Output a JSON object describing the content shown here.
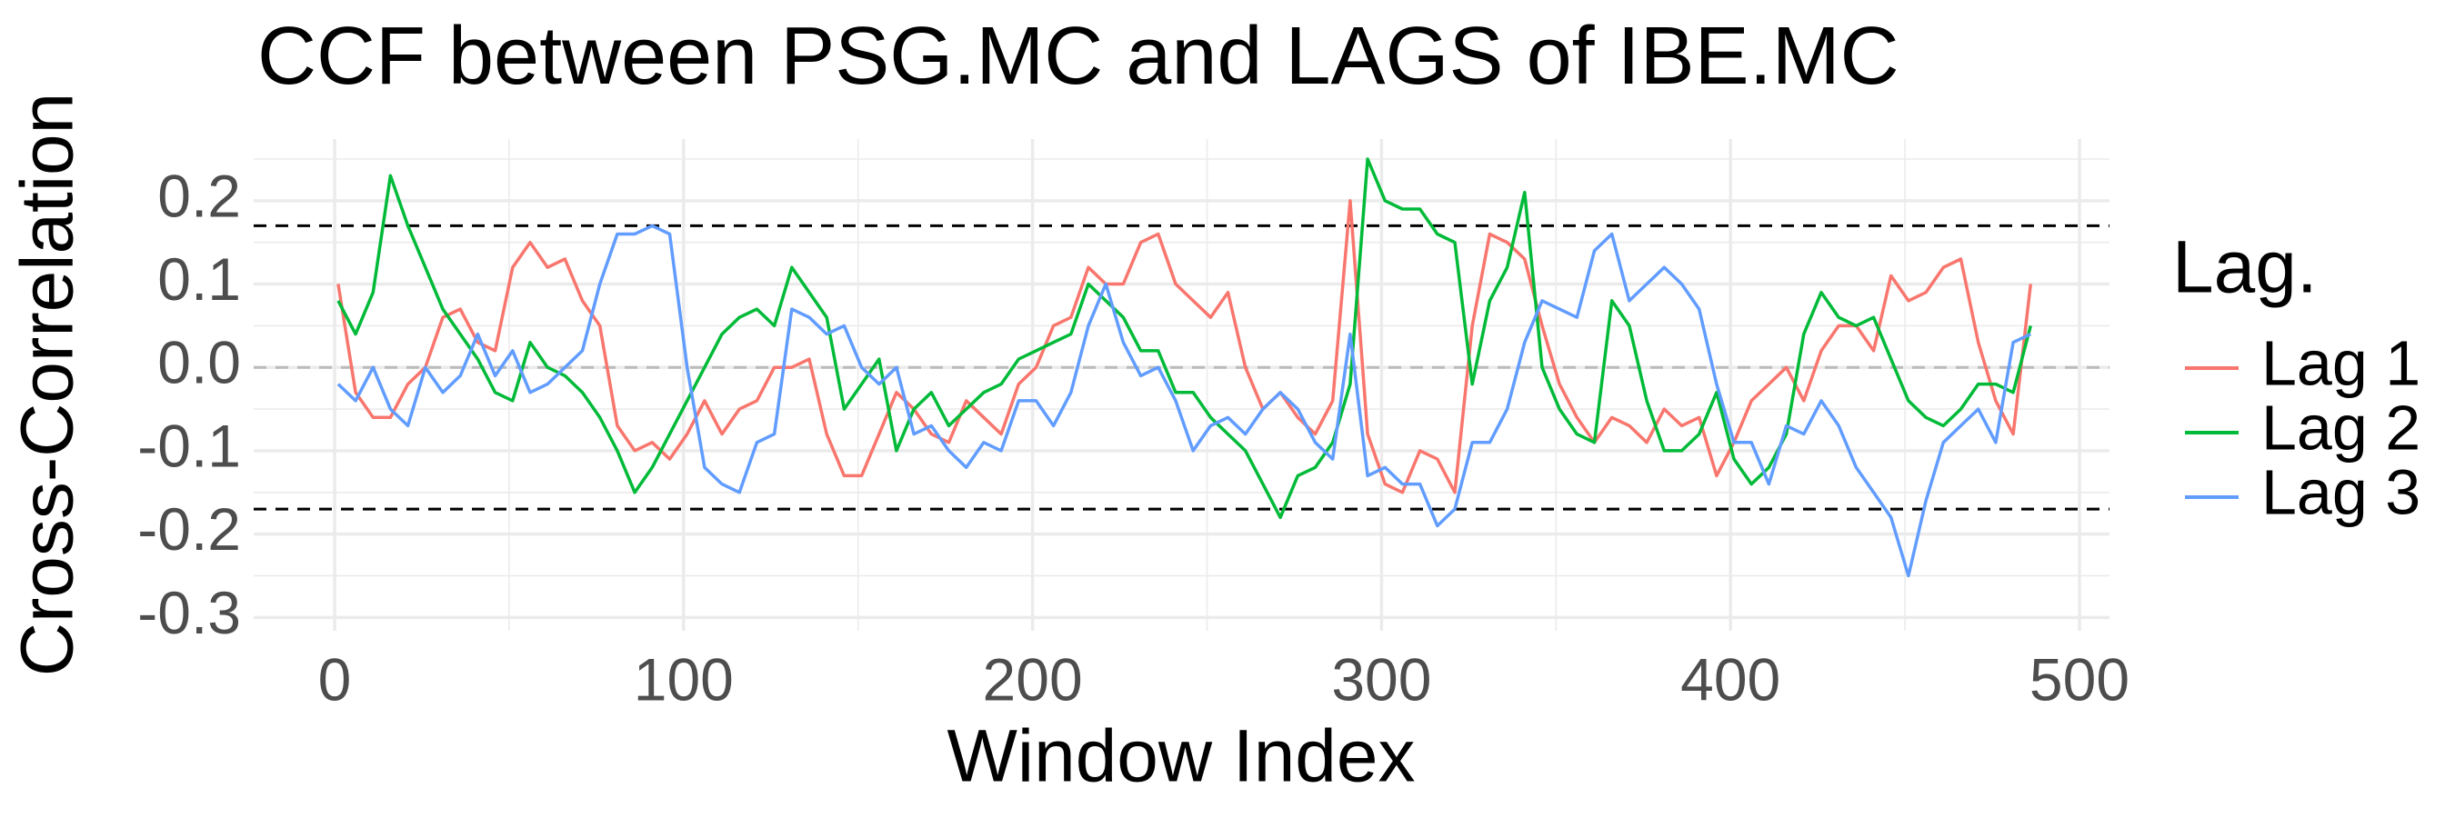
{
  "chart_data": {
    "type": "line",
    "title": "CCF between  PSG.MC and LAGS of IBE.MC",
    "x_label": "Window Index",
    "y_label": "Cross-Correlation",
    "legend_title": "Lag.",
    "legend_position": "right",
    "grid": true,
    "xlim": [
      -23.2,
      508.6
    ],
    "ylim": [
      -0.316,
      0.274
    ],
    "xticks": [
      0,
      100,
      200,
      300,
      400,
      500
    ],
    "yticks": [
      -0.3,
      -0.2,
      -0.1,
      {
        "value": 0,
        "label": "0.0"
      },
      0.1,
      0.2
    ],
    "x_minor_ticks": [
      50,
      150,
      250,
      350,
      450
    ],
    "y_minor_ticks": [
      -0.25,
      -0.15,
      -0.05,
      0.05,
      0.15,
      0.25
    ],
    "reference_lines": [
      {
        "value": 0.17,
        "color": "#000000"
      },
      {
        "value": -0.17,
        "color": "#000000"
      },
      {
        "value": 0,
        "color": "#bbbbbb"
      }
    ],
    "x": [
      1,
      6,
      11,
      16,
      21,
      26,
      31,
      36,
      41,
      46,
      51,
      56,
      61,
      66,
      71,
      76,
      81,
      86,
      91,
      96,
      101,
      106,
      111,
      116,
      121,
      126,
      131,
      136,
      141,
      146,
      151,
      156,
      161,
      166,
      171,
      176,
      181,
      186,
      191,
      196,
      201,
      206,
      211,
      216,
      221,
      226,
      231,
      236,
      241,
      246,
      251,
      256,
      261,
      266,
      271,
      276,
      281,
      286,
      291,
      296,
      301,
      306,
      311,
      316,
      321,
      326,
      331,
      336,
      341,
      346,
      351,
      356,
      361,
      366,
      371,
      376,
      381,
      386,
      391,
      396,
      401,
      406,
      411,
      416,
      421,
      426,
      431,
      436,
      441,
      446,
      451,
      456,
      461,
      466,
      471,
      476,
      481,
      486
    ],
    "series": [
      {
        "name": "Lag 1",
        "color": "#F8766D",
        "values": [
          0.1,
          -0.03,
          -0.06,
          -0.06,
          -0.02,
          0.0,
          0.06,
          0.07,
          0.03,
          0.02,
          0.12,
          0.15,
          0.12,
          0.13,
          0.08,
          0.05,
          -0.07,
          -0.1,
          -0.09,
          -0.11,
          -0.08,
          -0.04,
          -0.08,
          -0.05,
          -0.04,
          0.0,
          0.0,
          0.01,
          -0.08,
          -0.13,
          -0.13,
          -0.08,
          -0.03,
          -0.05,
          -0.08,
          -0.09,
          -0.04,
          -0.06,
          -0.08,
          -0.02,
          0.0,
          0.05,
          0.06,
          0.12,
          0.1,
          0.1,
          0.15,
          0.16,
          0.1,
          0.08,
          0.06,
          0.09,
          0.0,
          -0.05,
          -0.03,
          -0.06,
          -0.08,
          -0.04,
          0.2,
          -0.08,
          -0.14,
          -0.15,
          -0.1,
          -0.11,
          -0.15,
          0.05,
          0.16,
          0.15,
          0.13,
          0.05,
          -0.02,
          -0.06,
          -0.09,
          -0.06,
          -0.07,
          -0.09,
          -0.05,
          -0.07,
          -0.06,
          -0.13,
          -0.09,
          -0.04,
          -0.02,
          0.0,
          -0.04,
          0.02,
          0.05,
          0.05,
          0.02,
          0.11,
          0.08,
          0.09,
          0.12,
          0.13,
          0.03,
          -0.04,
          -0.08,
          0.1
        ]
      },
      {
        "name": "Lag 2",
        "color": "#00BA38",
        "values": [
          0.08,
          0.04,
          0.09,
          0.23,
          0.17,
          0.12,
          0.07,
          0.04,
          0.01,
          -0.03,
          -0.04,
          0.03,
          0.0,
          -0.01,
          -0.03,
          -0.06,
          -0.1,
          -0.15,
          -0.12,
          -0.08,
          -0.04,
          0.0,
          0.04,
          0.06,
          0.07,
          0.05,
          0.12,
          0.09,
          0.06,
          -0.05,
          -0.02,
          0.01,
          -0.1,
          -0.05,
          -0.03,
          -0.07,
          -0.05,
          -0.03,
          -0.02,
          0.01,
          0.02,
          0.03,
          0.04,
          0.1,
          0.08,
          0.06,
          0.02,
          0.02,
          -0.03,
          -0.03,
          -0.06,
          -0.08,
          -0.1,
          -0.14,
          -0.18,
          -0.13,
          -0.12,
          -0.09,
          -0.02,
          0.25,
          0.2,
          0.19,
          0.19,
          0.16,
          0.15,
          -0.02,
          0.08,
          0.12,
          0.21,
          0.0,
          -0.05,
          -0.08,
          -0.09,
          0.08,
          0.05,
          -0.04,
          -0.1,
          -0.1,
          -0.08,
          -0.03,
          -0.11,
          -0.14,
          -0.12,
          -0.08,
          0.04,
          0.09,
          0.06,
          0.05,
          0.06,
          0.01,
          -0.04,
          -0.06,
          -0.07,
          -0.05,
          -0.02,
          -0.02,
          -0.03,
          0.05
        ]
      },
      {
        "name": "Lag 3",
        "color": "#619CFF",
        "values": [
          -0.02,
          -0.04,
          0.0,
          -0.05,
          -0.07,
          0.0,
          -0.03,
          -0.01,
          0.04,
          -0.01,
          0.02,
          -0.03,
          -0.02,
          0.0,
          0.02,
          0.1,
          0.16,
          0.16,
          0.17,
          0.16,
          0.0,
          -0.12,
          -0.14,
          -0.15,
          -0.09,
          -0.08,
          0.07,
          0.06,
          0.04,
          0.05,
          0.0,
          -0.02,
          0.0,
          -0.08,
          -0.07,
          -0.1,
          -0.12,
          -0.09,
          -0.1,
          -0.04,
          -0.04,
          -0.07,
          -0.03,
          0.05,
          0.1,
          0.03,
          -0.01,
          0.0,
          -0.04,
          -0.1,
          -0.07,
          -0.06,
          -0.08,
          -0.05,
          -0.03,
          -0.05,
          -0.09,
          -0.11,
          0.04,
          -0.13,
          -0.12,
          -0.14,
          -0.14,
          -0.19,
          -0.17,
          -0.09,
          -0.09,
          -0.05,
          0.03,
          0.08,
          0.07,
          0.06,
          0.14,
          0.16,
          0.08,
          0.1,
          0.12,
          0.1,
          0.07,
          -0.02,
          -0.09,
          -0.09,
          -0.14,
          -0.07,
          -0.08,
          -0.04,
          -0.07,
          -0.12,
          -0.15,
          -0.18,
          -0.25,
          -0.16,
          -0.09,
          -0.07,
          -0.05,
          -0.09,
          0.03,
          0.04
        ]
      }
    ]
  }
}
